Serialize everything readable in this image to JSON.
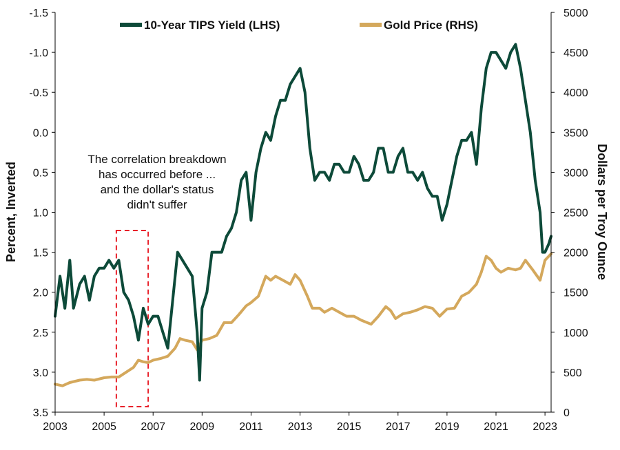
{
  "chart_data": {
    "type": "line",
    "title": "",
    "x_ticks": [
      "2003",
      "2005",
      "2007",
      "2009",
      "2011",
      "2013",
      "2015",
      "2017",
      "2019",
      "2021",
      "2023"
    ],
    "x_range": [
      2003.0,
      2023.25
    ],
    "y_left": {
      "label": "Percent, Inverted",
      "range": [
        -1.5,
        3.5
      ],
      "inverted": true,
      "ticks": [
        "-1.5",
        "-1.0",
        "-0.5",
        "0.0",
        "0.5",
        "1.0",
        "1.5",
        "2.0",
        "2.5",
        "3.0",
        "3.5"
      ]
    },
    "y_right": {
      "label": "Dollars per Troy Ounce",
      "range": [
        0,
        5000
      ],
      "ticks": [
        "0",
        "500",
        "1000",
        "1500",
        "2000",
        "2500",
        "3000",
        "3500",
        "4000",
        "4500",
        "5000"
      ]
    },
    "grid": false,
    "legend_position": "top",
    "series": [
      {
        "name": "10-Year TIPS Yield (LHS)",
        "axis": "left",
        "color": "#0d4a39",
        "x": [
          2003.0,
          2003.2,
          2003.4,
          2003.6,
          2003.75,
          2004.0,
          2004.2,
          2004.4,
          2004.6,
          2004.8,
          2005.0,
          2005.2,
          2005.4,
          2005.6,
          2005.8,
          2006.0,
          2006.2,
          2006.4,
          2006.6,
          2006.8,
          2007.0,
          2007.2,
          2007.4,
          2007.6,
          2007.8,
          2008.0,
          2008.2,
          2008.4,
          2008.6,
          2008.8,
          2008.9,
          2009.0,
          2009.2,
          2009.4,
          2009.6,
          2009.8,
          2010.0,
          2010.2,
          2010.4,
          2010.6,
          2010.8,
          2011.0,
          2011.2,
          2011.4,
          2011.6,
          2011.8,
          2012.0,
          2012.2,
          2012.4,
          2012.6,
          2012.8,
          2013.0,
          2013.2,
          2013.4,
          2013.6,
          2013.8,
          2014.0,
          2014.2,
          2014.4,
          2014.6,
          2014.8,
          2015.0,
          2015.2,
          2015.4,
          2015.6,
          2015.8,
          2016.0,
          2016.2,
          2016.4,
          2016.6,
          2016.8,
          2017.0,
          2017.2,
          2017.4,
          2017.6,
          2017.8,
          2018.0,
          2018.2,
          2018.4,
          2018.6,
          2018.8,
          2019.0,
          2019.2,
          2019.4,
          2019.6,
          2019.8,
          2020.0,
          2020.2,
          2020.4,
          2020.6,
          2020.8,
          2021.0,
          2021.2,
          2021.4,
          2021.6,
          2021.8,
          2022.0,
          2022.2,
          2022.4,
          2022.6,
          2022.8,
          2022.9,
          2023.0,
          2023.15,
          2023.25
        ],
        "values": [
          2.3,
          1.8,
          2.2,
          1.6,
          2.2,
          1.9,
          1.8,
          2.1,
          1.8,
          1.7,
          1.7,
          1.6,
          1.7,
          1.6,
          2.0,
          2.1,
          2.3,
          2.6,
          2.2,
          2.4,
          2.3,
          2.3,
          2.5,
          2.7,
          2.1,
          1.5,
          1.6,
          1.7,
          1.8,
          2.5,
          3.1,
          2.2,
          2.0,
          1.5,
          1.5,
          1.5,
          1.3,
          1.2,
          1.0,
          0.6,
          0.5,
          1.1,
          0.5,
          0.2,
          0.0,
          0.1,
          -0.2,
          -0.4,
          -0.4,
          -0.6,
          -0.7,
          -0.8,
          -0.5,
          0.2,
          0.6,
          0.5,
          0.5,
          0.6,
          0.4,
          0.4,
          0.5,
          0.5,
          0.3,
          0.4,
          0.6,
          0.6,
          0.5,
          0.2,
          0.2,
          0.5,
          0.5,
          0.3,
          0.2,
          0.5,
          0.5,
          0.6,
          0.5,
          0.7,
          0.8,
          0.8,
          1.1,
          0.9,
          0.6,
          0.3,
          0.1,
          0.1,
          0.0,
          0.4,
          -0.3,
          -0.8,
          -1.0,
          -1.0,
          -0.9,
          -0.8,
          -1.0,
          -1.1,
          -0.8,
          -0.4,
          0.0,
          0.6,
          1.0,
          1.5,
          1.5,
          1.4,
          1.3
        ]
      },
      {
        "name": "Gold Price (RHS)",
        "axis": "right",
        "color": "#d4a85c",
        "x": [
          2003.0,
          2003.3,
          2003.6,
          2004.0,
          2004.3,
          2004.6,
          2005.0,
          2005.3,
          2005.6,
          2005.9,
          2006.2,
          2006.4,
          2006.6,
          2006.8,
          2007.0,
          2007.3,
          2007.6,
          2007.9,
          2008.1,
          2008.3,
          2008.6,
          2008.8,
          2009.0,
          2009.3,
          2009.6,
          2009.9,
          2010.2,
          2010.5,
          2010.8,
          2011.0,
          2011.3,
          2011.6,
          2011.8,
          2012.0,
          2012.3,
          2012.6,
          2012.8,
          2013.0,
          2013.3,
          2013.5,
          2013.8,
          2014.0,
          2014.3,
          2014.6,
          2014.9,
          2015.2,
          2015.5,
          2015.9,
          2016.2,
          2016.5,
          2016.7,
          2016.9,
          2017.2,
          2017.5,
          2017.8,
          2018.1,
          2018.4,
          2018.7,
          2019.0,
          2019.3,
          2019.6,
          2019.9,
          2020.2,
          2020.4,
          2020.6,
          2020.8,
          2021.0,
          2021.2,
          2021.5,
          2021.8,
          2022.0,
          2022.2,
          2022.5,
          2022.8,
          2023.0,
          2023.25
        ],
        "values": [
          350,
          330,
          370,
          400,
          410,
          400,
          430,
          440,
          440,
          500,
          560,
          650,
          630,
          620,
          650,
          670,
          700,
          800,
          920,
          900,
          880,
          780,
          900,
          920,
          960,
          1120,
          1120,
          1220,
          1330,
          1370,
          1450,
          1700,
          1650,
          1700,
          1650,
          1600,
          1720,
          1650,
          1450,
          1300,
          1300,
          1250,
          1300,
          1250,
          1200,
          1200,
          1150,
          1100,
          1200,
          1320,
          1270,
          1170,
          1230,
          1250,
          1280,
          1320,
          1300,
          1200,
          1290,
          1300,
          1450,
          1500,
          1600,
          1750,
          1950,
          1900,
          1800,
          1750,
          1800,
          1780,
          1800,
          1900,
          1780,
          1650,
          1900,
          1980
        ]
      }
    ],
    "annotation": {
      "lines": [
        "The correlation breakdown",
        "has occurred before ...",
        "and the dollar's status",
        "didn't suffer"
      ],
      "box_x_range": [
        2005.5,
        2006.8
      ]
    }
  }
}
